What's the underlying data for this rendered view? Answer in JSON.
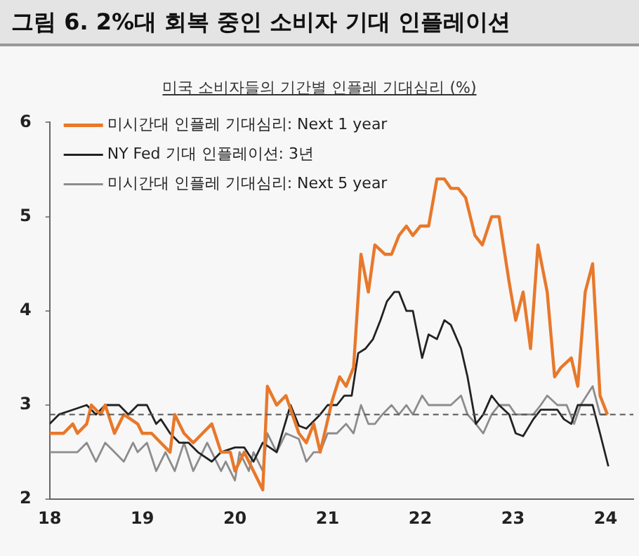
{
  "chart_data": {
    "type": "line",
    "title": "그림 6. 2%대 회복 중인 소비자 기대 인플레이션",
    "subtitle": "미국 소비자들의 기간별 인플레 기대심리 (%)",
    "xlim": [
      18,
      24.3
    ],
    "xticks": [
      18,
      19,
      20,
      21,
      22,
      23,
      24
    ],
    "ylim": [
      2,
      6
    ],
    "yticks": [
      2,
      3,
      4,
      5,
      6
    ],
    "grid": false,
    "legend": "top left",
    "marker": "none",
    "line_style": "solid",
    "ref_lines": [
      {
        "axis": "y",
        "value": 2.9,
        "line_style": "dashed",
        "color": "#555555"
      }
    ],
    "series": [
      {
        "name": "미시간대 인플레 기대심리: Next 1 year",
        "color": "#e8782a",
        "x": [
          18.0,
          18.15,
          18.25,
          18.3,
          18.4,
          18.45,
          18.55,
          18.6,
          18.7,
          18.8,
          18.95,
          19.0,
          19.1,
          19.2,
          19.3,
          19.35,
          19.45,
          19.55,
          19.65,
          19.75,
          19.85,
          19.95,
          20.0,
          20.1,
          20.2,
          20.3,
          20.35,
          20.45,
          20.55,
          20.69,
          20.77,
          20.85,
          20.92,
          21.05,
          21.13,
          21.2,
          21.28,
          21.36,
          21.44,
          21.51,
          21.62,
          21.69,
          21.77,
          21.85,
          21.92,
          22.0,
          22.09,
          22.18,
          22.26,
          22.33,
          22.41,
          22.49,
          22.59,
          22.67,
          22.77,
          22.85,
          22.96,
          23.03,
          23.11,
          23.19,
          23.27,
          23.37,
          23.45,
          23.52,
          23.63,
          23.7,
          23.78,
          23.86,
          23.94,
          24.02
        ],
        "values": [
          2.7,
          2.7,
          2.8,
          2.7,
          2.8,
          3.0,
          2.9,
          3.0,
          2.7,
          2.9,
          2.8,
          2.7,
          2.7,
          2.6,
          2.5,
          2.9,
          2.7,
          2.6,
          2.7,
          2.8,
          2.5,
          2.5,
          2.3,
          2.5,
          2.3,
          2.1,
          3.2,
          3.0,
          3.1,
          2.7,
          2.6,
          2.8,
          2.5,
          3.05,
          3.3,
          3.2,
          3.4,
          4.6,
          4.2,
          4.7,
          4.6,
          4.6,
          4.8,
          4.9,
          4.8,
          4.9,
          4.9,
          5.4,
          5.4,
          5.3,
          5.3,
          5.2,
          4.8,
          4.7,
          5.0,
          5.0,
          4.3,
          3.9,
          4.2,
          3.6,
          4.7,
          4.2,
          3.3,
          3.4,
          3.5,
          3.2,
          4.2,
          4.5,
          3.1,
          2.9
        ]
      },
      {
        "name": "NY Fed 기대 인플레이션: 3년",
        "color": "#222222",
        "x": [
          18.0,
          18.1,
          18.25,
          18.4,
          18.5,
          18.6,
          18.75,
          18.85,
          18.95,
          19.05,
          19.15,
          19.2,
          19.3,
          19.4,
          19.5,
          19.6,
          19.75,
          19.85,
          20.0,
          20.1,
          20.2,
          20.3,
          20.45,
          20.6,
          20.69,
          20.77,
          20.92,
          21.0,
          21.1,
          21.18,
          21.26,
          21.33,
          21.41,
          21.49,
          21.57,
          21.64,
          21.72,
          21.77,
          21.85,
          21.92,
          22.02,
          22.09,
          22.18,
          22.26,
          22.33,
          22.44,
          22.51,
          22.6,
          22.68,
          22.77,
          22.85,
          22.96,
          23.03,
          23.11,
          23.22,
          23.3,
          23.37,
          23.48,
          23.55,
          23.63,
          23.7,
          23.86,
          23.94,
          24.03
        ],
        "values": [
          2.8,
          2.9,
          2.95,
          3.0,
          2.9,
          3.0,
          3.0,
          2.9,
          3.0,
          3.0,
          2.8,
          2.85,
          2.7,
          2.6,
          2.6,
          2.5,
          2.4,
          2.5,
          2.55,
          2.55,
          2.4,
          2.6,
          2.5,
          3.0,
          2.78,
          2.75,
          2.9,
          3.0,
          3.0,
          3.1,
          3.1,
          3.55,
          3.6,
          3.7,
          3.9,
          4.1,
          4.2,
          4.2,
          4.0,
          4.0,
          3.5,
          3.75,
          3.7,
          3.9,
          3.85,
          3.6,
          3.3,
          2.8,
          2.9,
          3.1,
          3.0,
          2.9,
          2.7,
          2.67,
          2.85,
          2.95,
          2.95,
          2.95,
          2.85,
          2.8,
          3.0,
          3.0,
          2.7,
          2.35
        ]
      },
      {
        "name": "미시간대 인플레 기대심리: Next 5 year",
        "color": "#8c8c8c",
        "x": [
          18.0,
          18.3,
          18.4,
          18.5,
          18.6,
          18.7,
          18.8,
          18.9,
          18.95,
          19.05,
          19.15,
          19.25,
          19.35,
          19.45,
          19.55,
          19.65,
          19.7,
          19.8,
          19.85,
          19.9,
          20.0,
          20.05,
          20.15,
          20.2,
          20.3,
          20.35,
          20.45,
          20.55,
          20.69,
          20.77,
          20.85,
          20.92,
          21.0,
          21.1,
          21.2,
          21.28,
          21.36,
          21.44,
          21.51,
          21.59,
          21.69,
          21.77,
          21.85,
          21.92,
          22.02,
          22.09,
          22.33,
          22.44,
          22.51,
          22.6,
          22.68,
          22.77,
          22.85,
          22.96,
          23.03,
          23.22,
          23.3,
          23.37,
          23.48,
          23.58,
          23.66,
          23.73,
          23.86,
          23.94,
          24.02
        ],
        "values": [
          2.5,
          2.5,
          2.6,
          2.4,
          2.6,
          2.5,
          2.4,
          2.6,
          2.5,
          2.6,
          2.3,
          2.5,
          2.3,
          2.6,
          2.3,
          2.5,
          2.6,
          2.4,
          2.3,
          2.4,
          2.2,
          2.5,
          2.3,
          2.5,
          2.3,
          2.7,
          2.5,
          2.7,
          2.64,
          2.4,
          2.5,
          2.5,
          2.7,
          2.7,
          2.8,
          2.7,
          3.0,
          2.8,
          2.8,
          2.9,
          3.0,
          2.9,
          3.0,
          2.9,
          3.1,
          3.0,
          3.0,
          3.1,
          2.9,
          2.8,
          2.7,
          2.9,
          3.0,
          3.0,
          2.9,
          2.9,
          3.0,
          3.1,
          3.0,
          3.0,
          2.8,
          3.0,
          3.2,
          2.9,
          2.9
        ]
      }
    ]
  }
}
